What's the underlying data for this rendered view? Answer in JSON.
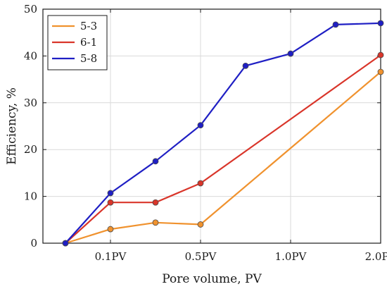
{
  "chart_data": {
    "type": "line",
    "xlabel": "Pore volume, PV",
    "ylabel": "Efficiency, %",
    "x_ticks": [
      "0.1PV",
      "0.5PV",
      "1.0PV",
      "2.0PV"
    ],
    "x_tick_positions": [
      1,
      3,
      5,
      7
    ],
    "xlim": [
      -0.5,
      7
    ],
    "y_ticks": [
      0,
      10,
      20,
      30,
      40,
      50
    ],
    "ylim": [
      0,
      50
    ],
    "grid": true,
    "legend_position": "top-left",
    "series": [
      {
        "name": "5-3",
        "color": "#f0922e",
        "x": [
          0,
          1,
          2,
          3,
          7
        ],
        "values": [
          0,
          3.0,
          4.4,
          4.0,
          36.6
        ]
      },
      {
        "name": "6-1",
        "color": "#d9352a",
        "x": [
          0,
          1,
          2,
          3,
          7
        ],
        "values": [
          0,
          8.7,
          8.7,
          12.8,
          40.2
        ]
      },
      {
        "name": "5-8",
        "color": "#1f1fc4",
        "x": [
          0,
          1,
          2,
          3,
          4,
          5,
          6,
          7
        ],
        "values": [
          0,
          10.7,
          17.5,
          25.2,
          37.9,
          40.5,
          46.7,
          47.0
        ]
      }
    ]
  }
}
